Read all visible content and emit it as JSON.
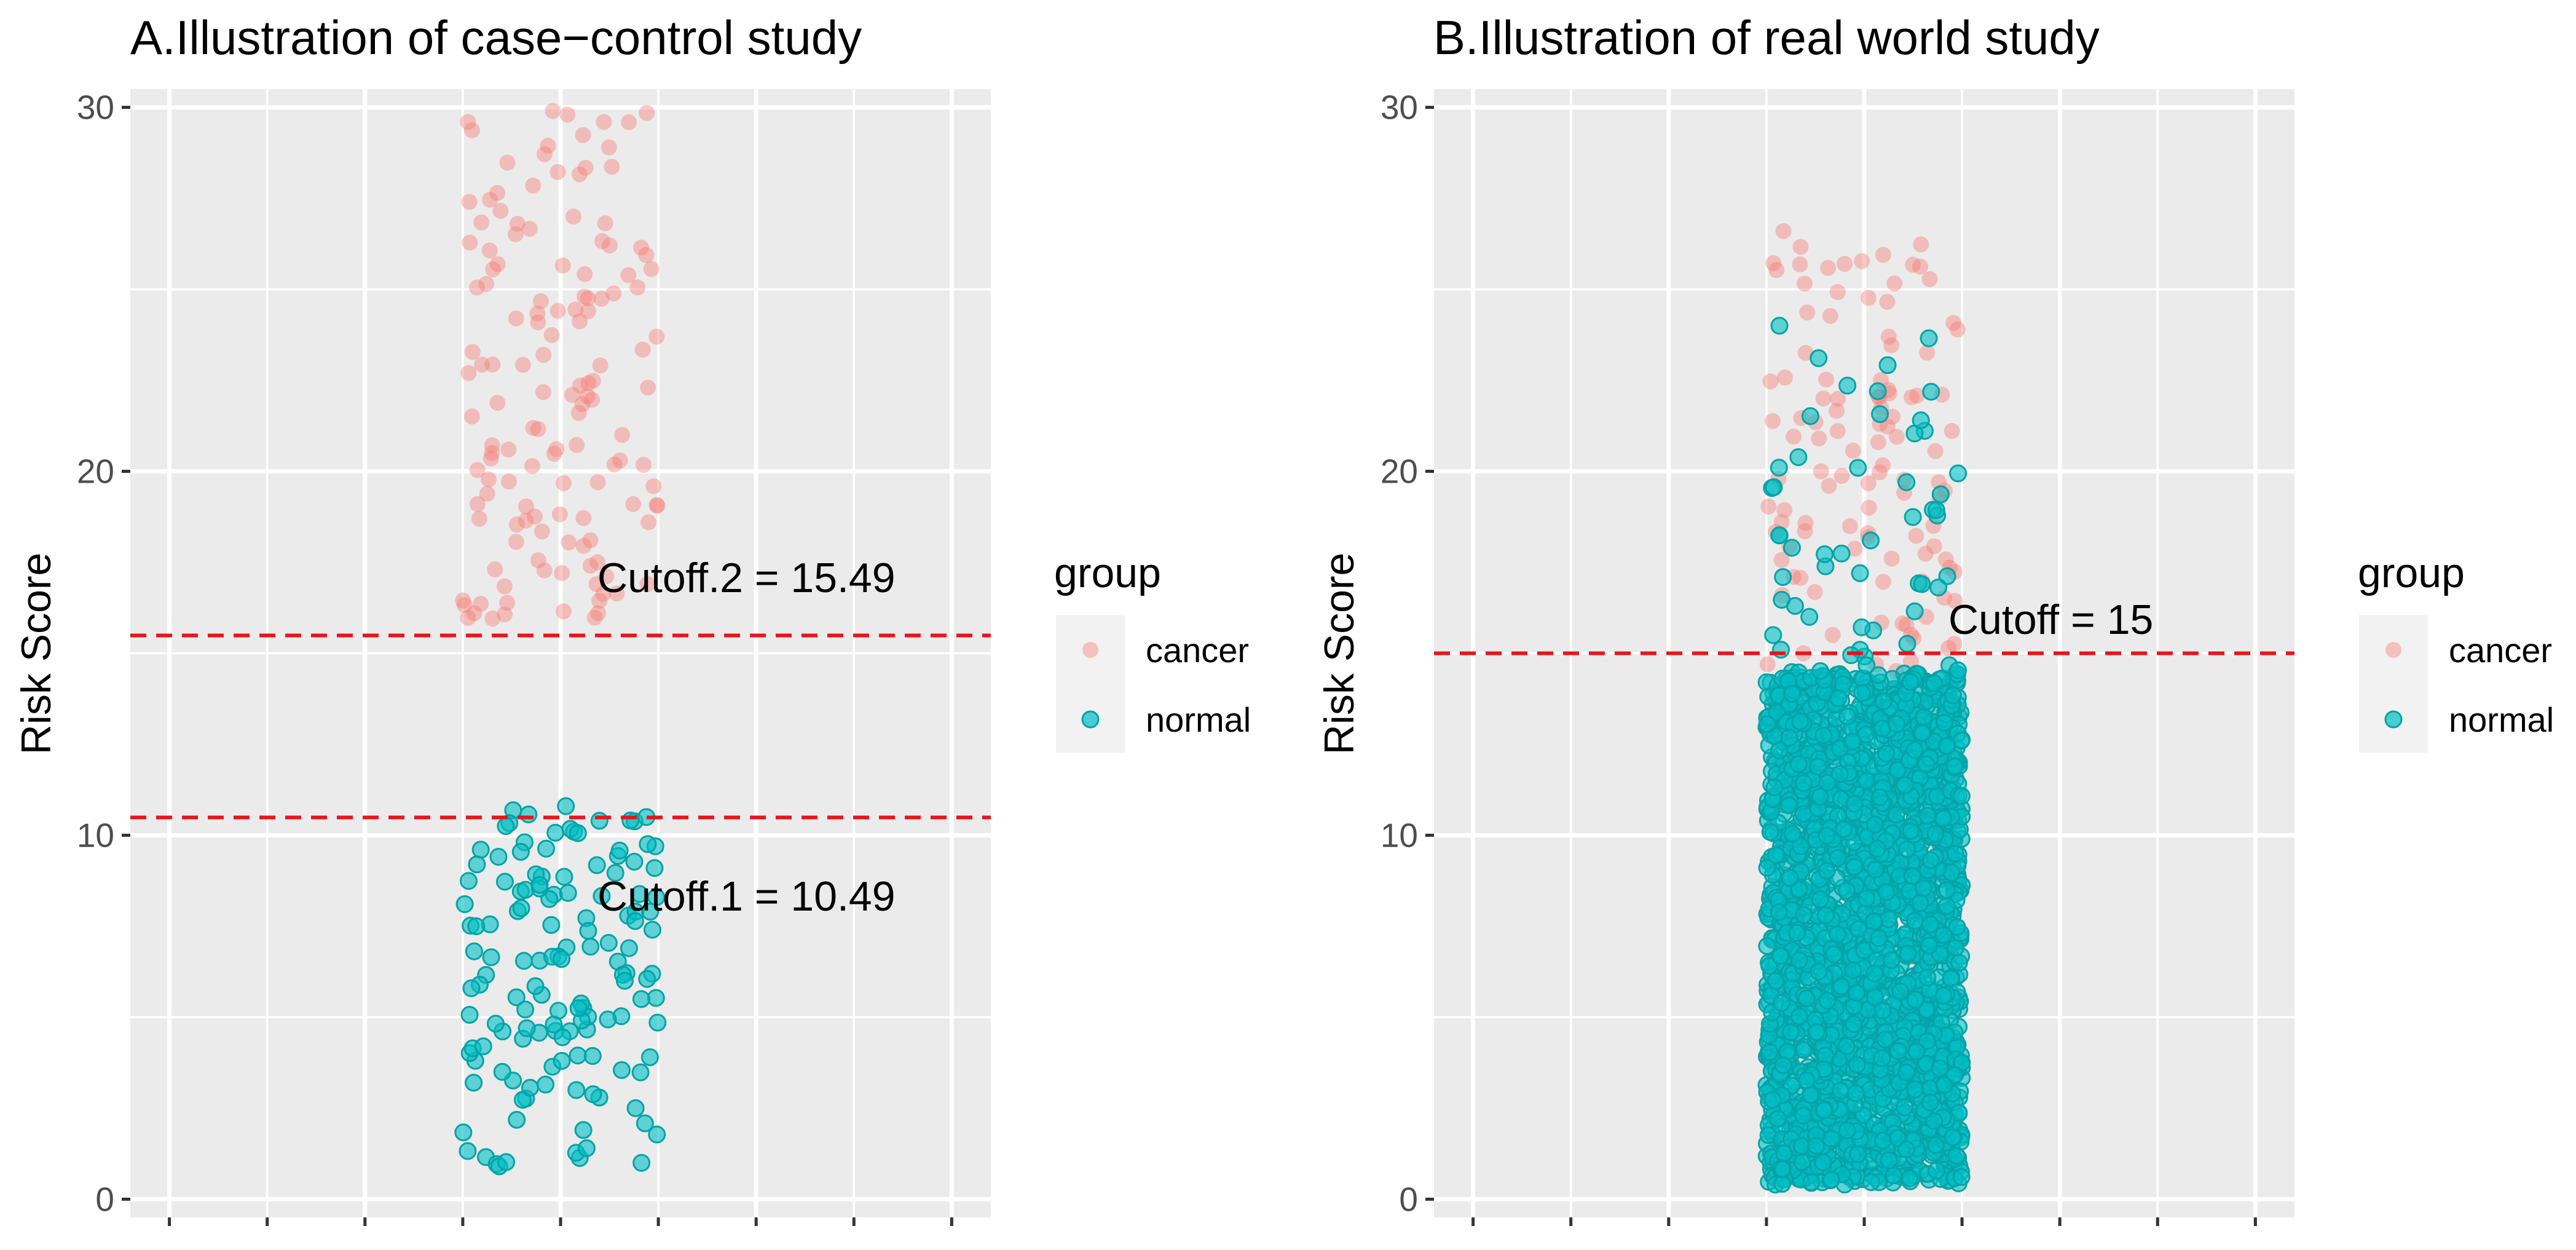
{
  "chart_data": [
    {
      "type": "scatter",
      "title": "A.Illustration of case−control study",
      "xlabel": "",
      "ylabel": "Risk Score",
      "ylim": [
        -0.5,
        30.5
      ],
      "yticks": [
        0,
        10,
        20,
        30
      ],
      "grid": true,
      "legend": {
        "title": "group",
        "position": "right",
        "entries": [
          "cancer",
          "normal"
        ]
      },
      "cutoffs": [
        {
          "label": "Cutoff.2 = 15.49",
          "value": 15.49
        },
        {
          "label": "Cutoff.1 = 10.49",
          "value": 10.49
        }
      ],
      "series": [
        {
          "name": "cancer",
          "n": 120,
          "y_min": 15.8,
          "y_max": 29.9,
          "jitter_center": 0.0,
          "jitter_half_width": 0.25,
          "highlight_y": [
            29.9,
            28.9,
            27.0,
            26.8,
            24.8,
            24.4,
            24.2,
            23.7,
            22.7,
            22.1,
            21.0,
            20.6,
            20.3,
            19.1,
            18.6,
            17.5,
            16.9,
            16.1
          ]
        },
        {
          "name": "normal",
          "n": 120,
          "y_min": 0.9,
          "y_max": 10.8,
          "jitter_center": 0.0,
          "jitter_half_width": 0.25,
          "highlight_y": [
            10.8,
            10.5,
            9.2,
            9.1,
            8.3,
            7.9,
            7.5,
            6.6,
            6.0,
            5.5,
            4.8,
            4.2,
            3.5,
            3.0,
            2.5,
            1.9,
            1.4,
            1.0
          ]
        }
      ]
    },
    {
      "type": "scatter",
      "title": "B.Illustration of real world study",
      "xlabel": "",
      "ylabel": "Risk Score",
      "ylim": [
        -0.5,
        30.5
      ],
      "yticks": [
        0,
        10,
        20,
        30
      ],
      "grid": true,
      "legend": {
        "title": "group",
        "position": "right",
        "entries": [
          "cancer",
          "normal"
        ]
      },
      "cutoffs": [
        {
          "label": "Cutoff = 15",
          "value": 15
        }
      ],
      "series": [
        {
          "name": "cancer",
          "n": 100,
          "y_min": 14.0,
          "y_max": 26.6,
          "jitter_center": 0.0,
          "jitter_half_width": 0.25,
          "highlight_y": [
            26.6,
            25.7,
            23.9,
            23.7,
            22.0,
            21.5,
            21.3,
            20.8,
            20.0,
            19.6,
            19.0,
            18.3,
            17.6,
            17.1,
            16.6,
            16.0
          ]
        },
        {
          "name": "normal",
          "n": 10000,
          "y_min": 0.4,
          "y_max": 24.0,
          "dense_to": 14.5,
          "jitter_center": 0.0,
          "jitter_half_width": 0.25,
          "highlight_y": [
            24.0,
            22.2,
            21.4,
            20.1,
            19.7,
            18.1,
            17.9,
            17.2,
            16.9,
            16.3,
            16.0,
            15.5,
            15.1
          ]
        }
      ]
    }
  ],
  "colors": {
    "cancer": "#F8766D",
    "normal": "#00BFC4",
    "panel_bg": "#EBEBEB",
    "grid": "#FFFFFF",
    "cutoff_line": "#E8141B",
    "tick_text": "#4D4D4D"
  }
}
